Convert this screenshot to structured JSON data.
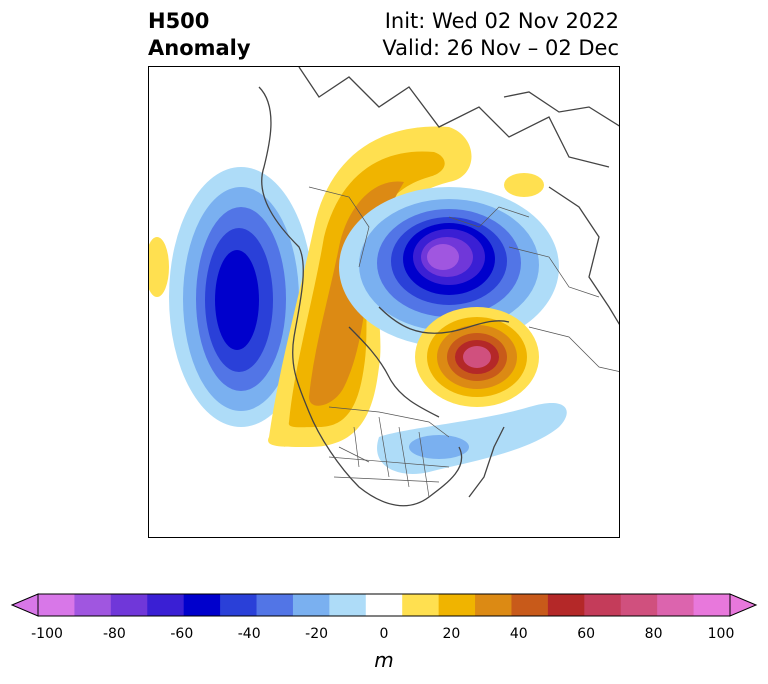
{
  "title": {
    "left_line1": "H500",
    "left_line2": "Anomaly",
    "right_line1": "Init: Wed 02 Nov 2022",
    "right_line2": "Valid: 26 Nov – 02 Dec"
  },
  "colorbar": {
    "unit": "m",
    "tick_labels": [
      "-100",
      "-80",
      "-60",
      "-40",
      "-20",
      "0",
      "20",
      "40",
      "60",
      "80",
      "100"
    ],
    "colors": [
      "#d877e8",
      "#a056e0",
      "#7037d9",
      "#3a1fd4",
      "#0000cc",
      "#2a40d8",
      "#5275e6",
      "#7ab0f0",
      "#aedcf8",
      "#ffffff",
      "#ffe050",
      "#f0b400",
      "#dc8a14",
      "#c85a1a",
      "#b42828",
      "#c43c5a",
      "#d0507e",
      "#dc64ae",
      "#e878dc"
    ]
  },
  "map": {
    "region": "Northern Hemisphere polar stereographic",
    "features": [
      "coastlines",
      "country borders",
      "US state borders"
    ],
    "anomalies": [
      {
        "name": "North Pacific trough",
        "sign": "negative",
        "peak_m": -60
      },
      {
        "name": "Western North America ridge",
        "sign": "positive",
        "peak_m": 40
      },
      {
        "name": "Siberian Arctic trough",
        "sign": "negative",
        "peak_m": -100
      },
      {
        "name": "North Atlantic ridge",
        "sign": "positive",
        "peak_m": 70
      },
      {
        "name": "Eastern US trough",
        "sign": "negative",
        "peak_m": -30
      }
    ]
  }
}
